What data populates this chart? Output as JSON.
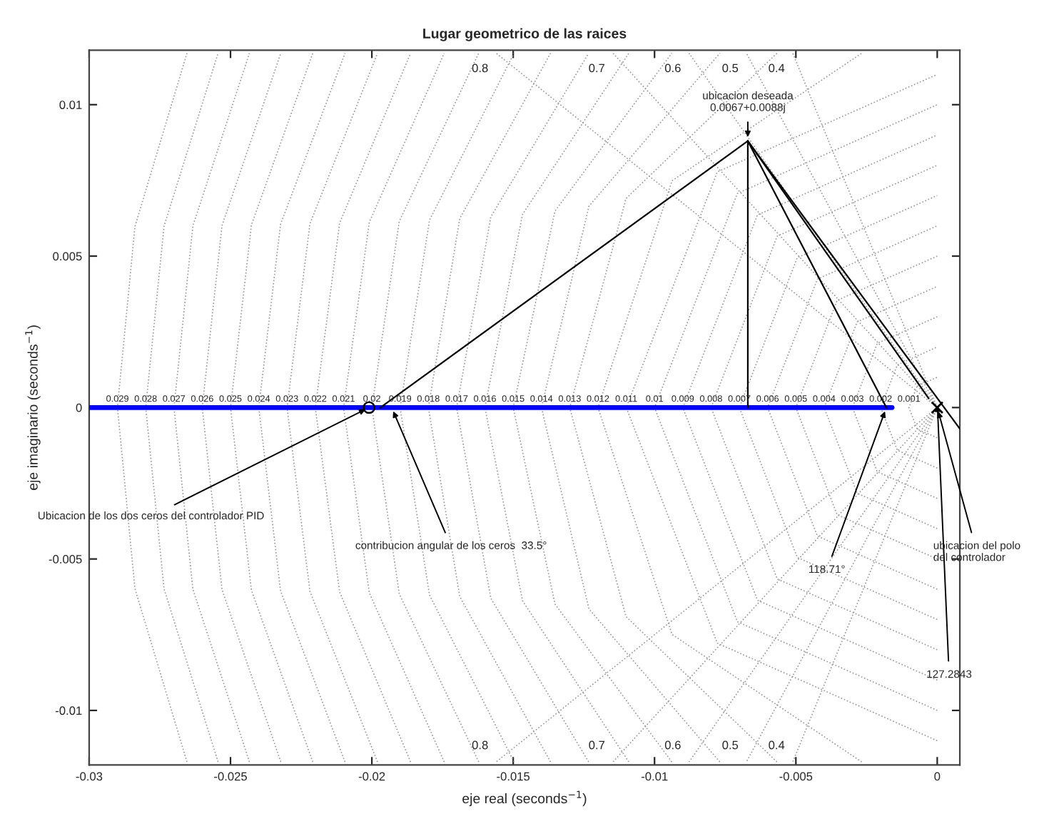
{
  "chart_data": {
    "type": "line",
    "title": "Lugar geometrico de las raices",
    "xlabel": "eje real (seconds$^{−1}$)",
    "ylabel": "eje imaginario (seconds$^{−1}$)",
    "xlim": [
      -0.03,
      0.0008
    ],
    "ylim": [
      -0.0118,
      0.0118
    ],
    "xticks": [
      -0.03,
      -0.025,
      -0.02,
      -0.015,
      -0.01,
      -0.005,
      0
    ],
    "yticks": [
      -0.01,
      -0.005,
      0,
      0.005,
      0.01
    ],
    "legend": false,
    "series": [
      {
        "color": "#999999",
        "line_style": "dotted",
        "x": [
          -0.02654,
          -0.02838,
          -0.029,
          -0.02838,
          -0.02654
        ],
        "values": [
          -0.0117,
          -0.00598,
          0,
          0.00598,
          0.0117
        ]
      },
      {
        "color": "#999999",
        "line_style": "dotted",
        "x": [
          -0.02544,
          -0.02735,
          -0.028,
          -0.02735,
          -0.02544
        ],
        "values": [
          -0.0117,
          -0.00599,
          0,
          0.00599,
          0.0117
        ]
      },
      {
        "color": "#999999",
        "line_style": "dotted",
        "x": [
          -0.02433,
          -0.02633,
          -0.027,
          -0.02633,
          -0.02433
        ],
        "values": [
          -0.0117,
          -0.006,
          0,
          0.006,
          0.0117
        ]
      },
      {
        "color": "#999999",
        "line_style": "dotted",
        "x": [
          -0.02322,
          -0.0253,
          -0.026,
          -0.0253,
          -0.02322
        ],
        "values": [
          -0.0117,
          -0.00601,
          0,
          0.00601,
          0.0117
        ]
      },
      {
        "color": "#999999",
        "line_style": "dotted",
        "x": [
          -0.02209,
          -0.02426,
          -0.025,
          -0.02426,
          -0.02209
        ],
        "values": [
          -0.0117,
          -0.00603,
          0,
          0.00603,
          0.0117
        ]
      },
      {
        "color": "#999999",
        "line_style": "dotted",
        "x": [
          -0.02095,
          -0.02323,
          -0.024,
          -0.02323,
          -0.02095
        ],
        "values": [
          -0.0117,
          -0.00605,
          0,
          0.00605,
          0.0117
        ]
      },
      {
        "color": "#999999",
        "line_style": "dotted",
        "x": [
          -0.0198,
          -0.02219,
          -0.023,
          -0.02219,
          -0.0198
        ],
        "values": [
          -0.0117,
          -0.00607,
          0,
          0.00607,
          0.0117
        ]
      },
      {
        "color": "#999999",
        "line_style": "dotted",
        "x": [
          -0.01863,
          -0.02114,
          -0.022,
          -0.02114,
          -0.01863
        ],
        "values": [
          -0.0117,
          -0.00609,
          0,
          0.00609,
          0.0117
        ]
      },
      {
        "color": "#999999",
        "line_style": "dotted",
        "x": [
          -0.01744,
          -0.02009,
          -0.021,
          -0.02009,
          -0.01744
        ],
        "values": [
          -0.0117,
          -0.00612,
          0,
          0.00612,
          0.0117
        ]
      },
      {
        "color": "#999999",
        "line_style": "dotted",
        "x": [
          -0.01622,
          -0.01903,
          -0.02,
          -0.01903,
          -0.01622
        ],
        "values": [
          -0.0117,
          -0.00615,
          0,
          0.00615,
          0.0117
        ]
      },
      {
        "color": "#999999",
        "line_style": "dotted",
        "x": [
          -0.01497,
          -0.01796,
          -0.019,
          -0.01796,
          -0.01497
        ],
        "values": [
          -0.0117,
          -0.00619,
          0,
          0.00619,
          0.0117
        ]
      },
      {
        "color": "#999999",
        "line_style": "dotted",
        "x": [
          -0.01368,
          -0.01689,
          -0.018,
          -0.01689,
          -0.01368
        ],
        "values": [
          -0.0117,
          -0.00624,
          0,
          0.00624,
          0.0117
        ]
      },
      {
        "color": "#999999",
        "line_style": "dotted",
        "x": [
          -0.01233,
          -0.01579,
          -0.017,
          -0.01579,
          -0.01233
        ],
        "values": [
          -0.0117,
          -0.0063,
          0,
          0.0063,
          0.0117
        ]
      },
      {
        "color": "#999999",
        "line_style": "dotted",
        "x": [
          -0.01091,
          -0.01467,
          -0.016,
          -0.01467,
          -0.01091
        ],
        "values": [
          -0.0117,
          -0.00638,
          0,
          0.00638,
          0.0117
        ]
      },
      {
        "color": "#999999",
        "line_style": "dotted",
        "x": [
          -0.00939,
          -0.01352,
          -0.015,
          -0.01352,
          -0.00939
        ],
        "values": [
          -0.0117,
          -0.00649,
          0,
          0.00649,
          0.0117
        ]
      },
      {
        "color": "#999999",
        "line_style": "dotted",
        "x": [
          -0.00769,
          -0.01232,
          -0.014,
          -0.01232,
          -0.00769
        ],
        "values": [
          -0.0117,
          -0.00665,
          0,
          0.00665,
          0.0117
        ]
      },
      {
        "color": "#999999",
        "line_style": "dotted",
        "x": [
          -0.00567,
          -0.01101,
          -0.013,
          -0.01101,
          -0.00567
        ],
        "values": [
          -0.0117,
          -0.0069,
          0,
          0.0069,
          0.0117
        ]
      },
      {
        "color": "#999999",
        "line_style": "dotted",
        "x": [
          -0.00267,
          -0.00938,
          -0.012,
          -0.00938,
          -0.00267
        ],
        "values": [
          -0.0117,
          -0.00749,
          0,
          0.00749,
          0.0117
        ]
      },
      {
        "color": "#999999",
        "line_style": "dotted",
        "x": [
          0,
          -0.00778,
          -0.011,
          -0.00778,
          0
        ],
        "values": [
          -0.011,
          -0.00778,
          0,
          0.00778,
          0.011
        ]
      },
      {
        "color": "#999999",
        "line_style": "dotted",
        "x": [
          0,
          -0.00707,
          -0.01,
          -0.00707,
          0
        ],
        "values": [
          -0.01,
          -0.00707,
          0,
          0.00707,
          0.01
        ]
      },
      {
        "color": "#999999",
        "line_style": "dotted",
        "x": [
          0,
          -0.00636,
          -0.009,
          -0.00636,
          0
        ],
        "values": [
          -0.009,
          -0.00636,
          0,
          0.00636,
          0.009
        ]
      },
      {
        "color": "#999999",
        "line_style": "dotted",
        "x": [
          0,
          -0.00566,
          -0.008,
          -0.00566,
          0
        ],
        "values": [
          -0.008,
          -0.00566,
          0,
          0.00566,
          0.008
        ]
      },
      {
        "color": "#999999",
        "line_style": "dotted",
        "x": [
          0,
          -0.00495,
          -0.007,
          -0.00495,
          0
        ],
        "values": [
          -0.007,
          -0.00495,
          0,
          0.00495,
          0.007
        ]
      },
      {
        "color": "#999999",
        "line_style": "dotted",
        "x": [
          0,
          -0.00424,
          -0.006,
          -0.00424,
          0
        ],
        "values": [
          -0.006,
          -0.00424,
          0,
          0.00424,
          0.006
        ]
      },
      {
        "color": "#999999",
        "line_style": "dotted",
        "x": [
          0,
          -0.00354,
          -0.005,
          -0.00354,
          0
        ],
        "values": [
          -0.005,
          -0.00354,
          0,
          0.00354,
          0.005
        ]
      },
      {
        "color": "#999999",
        "line_style": "dotted",
        "x": [
          0,
          -0.00283,
          -0.004,
          -0.00283,
          0
        ],
        "values": [
          -0.004,
          -0.00283,
          0,
          0.00283,
          0.004
        ]
      },
      {
        "color": "#999999",
        "line_style": "dotted",
        "x": [
          0,
          -0.00212,
          -0.003,
          -0.00212,
          0
        ],
        "values": [
          -0.003,
          -0.00212,
          0,
          0.00212,
          0.003
        ]
      },
      {
        "color": "#999999",
        "line_style": "dotted",
        "x": [
          0,
          -0.00141,
          -0.002,
          -0.00141,
          0
        ],
        "values": [
          -0.002,
          -0.00141,
          0,
          0.00141,
          0.002
        ]
      },
      {
        "color": "#999999",
        "line_style": "dotted",
        "x": [
          0,
          -0.00071,
          -0.001,
          -0.00071,
          0
        ],
        "values": [
          -0.001,
          -0.00071,
          0,
          0.00071,
          0.001
        ]
      },
      {
        "color": "#999999",
        "line_style": "dotted",
        "x": [
          0,
          -0.0156
        ],
        "values": [
          0,
          0.0117
        ]
      },
      {
        "color": "#999999",
        "line_style": "dotted",
        "x": [
          0,
          -0.01147
        ],
        "values": [
          0,
          0.0117
        ]
      },
      {
        "color": "#999999",
        "line_style": "dotted",
        "x": [
          0,
          -0.00878
        ],
        "values": [
          0,
          0.0117
        ]
      },
      {
        "color": "#999999",
        "line_style": "dotted",
        "x": [
          0,
          -0.00675
        ],
        "values": [
          0,
          0.0117
        ]
      },
      {
        "color": "#999999",
        "line_style": "dotted",
        "x": [
          0,
          -0.00511
        ],
        "values": [
          0,
          0.0117
        ]
      },
      {
        "color": "#999999",
        "line_style": "dotted",
        "x": [
          0,
          -0.0156
        ],
        "values": [
          0,
          -0.0117
        ]
      },
      {
        "color": "#999999",
        "line_style": "dotted",
        "x": [
          0,
          -0.01147
        ],
        "values": [
          0,
          -0.0117
        ]
      },
      {
        "color": "#999999",
        "line_style": "dotted",
        "x": [
          0,
          -0.00878
        ],
        "values": [
          0,
          -0.0117
        ]
      },
      {
        "color": "#999999",
        "line_style": "dotted",
        "x": [
          0,
          -0.00675
        ],
        "values": [
          0,
          -0.0117
        ]
      },
      {
        "color": "#999999",
        "line_style": "dotted",
        "x": [
          0,
          -0.00511
        ],
        "values": [
          0,
          -0.0117
        ]
      },
      {
        "color": "#0000ff",
        "x": [
          -0.03,
          -0.0016
        ],
        "values": [
          0,
          0
        ]
      },
      {
        "color": "#000000",
        "x": [
          -0.0197,
          -0.0067
        ],
        "values": [
          0,
          0.0088
        ]
      },
      {
        "color": "#000000",
        "x": [
          -0.0067,
          -0.0067
        ],
        "values": [
          0.0088,
          0
        ]
      },
      {
        "color": "#000000",
        "x": [
          -0.0067,
          -0.0018
        ],
        "values": [
          0.0088,
          0
        ]
      },
      {
        "color": "#000000",
        "x": [
          -0.0067,
          0.0008
        ],
        "values": [
          0.0088,
          -0.0007
        ]
      },
      {
        "color": "#000000",
        "x": [
          -0.0067,
          -0.0003
        ],
        "values": [
          0.0088,
          0.0003
        ]
      },
      {
        "type": "scatter",
        "marker": "circle",
        "color": "#000000",
        "x": [
          -0.0201,
          -0.0201
        ],
        "values": [
          0,
          0
        ]
      },
      {
        "type": "scatter",
        "marker": "cross",
        "color": "#000000",
        "x": [
          0
        ],
        "values": [
          0
        ]
      }
    ],
    "annotations": [
      {
        "text": "0.029",
        "x": -0.029,
        "y": 0
      },
      {
        "text": "0.028",
        "x": -0.028,
        "y": 0
      },
      {
        "text": "0.027",
        "x": -0.027,
        "y": 0
      },
      {
        "text": "0.026",
        "x": -0.026,
        "y": 0
      },
      {
        "text": "0.025",
        "x": -0.025,
        "y": 0
      },
      {
        "text": "0.024",
        "x": -0.024,
        "y": 0
      },
      {
        "text": "0.023",
        "x": -0.023,
        "y": 0
      },
      {
        "text": "0.022",
        "x": -0.022,
        "y": 0
      },
      {
        "text": "0.021",
        "x": -0.021,
        "y": 0
      },
      {
        "text": "0.02",
        "x": -0.02,
        "y": 0
      },
      {
        "text": "0.019",
        "x": -0.019,
        "y": 0
      },
      {
        "text": "0.018",
        "x": -0.018,
        "y": 0
      },
      {
        "text": "0.017",
        "x": -0.017,
        "y": 0
      },
      {
        "text": "0.016",
        "x": -0.016,
        "y": 0
      },
      {
        "text": "0.015",
        "x": -0.015,
        "y": 0
      },
      {
        "text": "0.014",
        "x": -0.014,
        "y": 0
      },
      {
        "text": "0.013",
        "x": -0.013,
        "y": 0
      },
      {
        "text": "0.012",
        "x": -0.012,
        "y": 0
      },
      {
        "text": "0.011",
        "x": -0.011,
        "y": 0
      },
      {
        "text": "0.01",
        "x": -0.01,
        "y": 0
      },
      {
        "text": "0.009",
        "x": -0.009,
        "y": 0
      },
      {
        "text": "0.008",
        "x": -0.008,
        "y": 0
      },
      {
        "text": "0.007",
        "x": -0.007,
        "y": 0
      },
      {
        "text": "0.006",
        "x": -0.006,
        "y": 0
      },
      {
        "text": "0.005",
        "x": -0.005,
        "y": 0
      },
      {
        "text": "0.004",
        "x": -0.004,
        "y": 0
      },
      {
        "text": "0.003",
        "x": -0.003,
        "y": 0
      },
      {
        "text": "0.002",
        "x": -0.002,
        "y": 0
      },
      {
        "text": "0.001",
        "x": -0.001,
        "y": 0
      },
      {
        "text": "0.8",
        "x": -0.0156,
        "y": 0.0117
      },
      {
        "text": "0.7",
        "x": -0.01147,
        "y": 0.0117
      },
      {
        "text": "0.6",
        "x": -0.00878,
        "y": 0.0117
      },
      {
        "text": "0.5",
        "x": -0.00675,
        "y": 0.0117
      },
      {
        "text": "0.4",
        "x": -0.00511,
        "y": 0.0117
      },
      {
        "text": "0.8",
        "x": -0.0156,
        "y": -0.0117
      },
      {
        "text": "0.7",
        "x": -0.01147,
        "y": -0.0117
      },
      {
        "text": "0.6",
        "x": -0.00878,
        "y": -0.0117
      },
      {
        "text": "0.5",
        "x": -0.00675,
        "y": -0.0117
      },
      {
        "text": "0.4",
        "x": -0.00511,
        "y": -0.0117
      },
      {
        "text": "ubicacion deseada\n0.0067+0.0088j",
        "x": -0.0067,
        "y": 0.0088
      },
      {
        "text": "Ubicacion de los dos ceros del controlador PID",
        "x": -0.0201,
        "y": 0
      },
      {
        "text": "contribucion angular de los ceros  33.5°",
        "x": -0.0193,
        "y": 0
      },
      {
        "text": "118.71°",
        "x": -0.0018,
        "y": 0
      },
      {
        "text": "127.2843",
        "x": 0,
        "y": 0.0002
      },
      {
        "text": "ubicacion del polo\ndel controlador",
        "x": 0,
        "y": 0
      }
    ]
  }
}
